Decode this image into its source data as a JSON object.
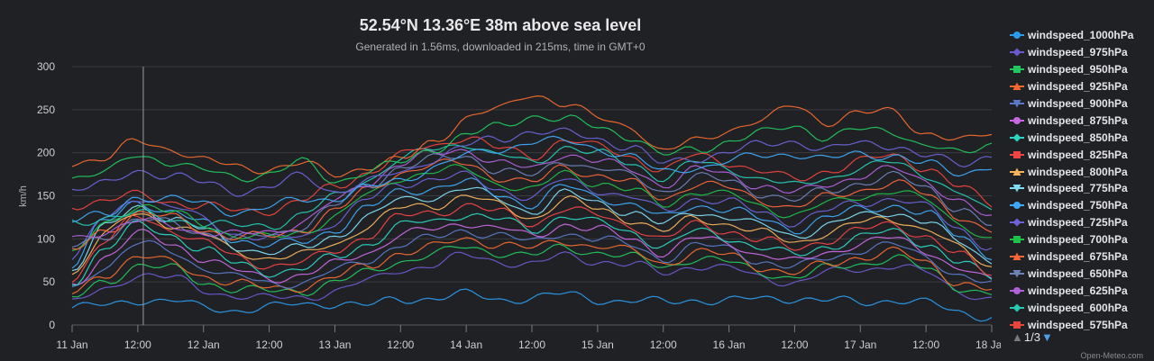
{
  "title": "52.54°N 13.36°E 38m above sea level",
  "subtitle": "Generated in 1.56ms, downloaded in 215ms, time in GMT+0",
  "legend_nav": {
    "up_icon": "▲",
    "page": "1/3",
    "down_icon": "▼"
  },
  "credits": "Open-Meteo.com",
  "chart_data": {
    "type": "line",
    "ylabel": "km/h",
    "xlabel": "",
    "ylim": [
      0,
      300
    ],
    "yticks": [
      0,
      50,
      100,
      150,
      200,
      250,
      300
    ],
    "xlim": [
      0,
      168
    ],
    "xticks": [
      {
        "x": 0,
        "label": "11 Jan"
      },
      {
        "x": 12,
        "label": "12:00"
      },
      {
        "x": 24,
        "label": "12 Jan"
      },
      {
        "x": 36,
        "label": "12:00"
      },
      {
        "x": 48,
        "label": "13 Jan"
      },
      {
        "x": 60,
        "label": "12:00"
      },
      {
        "x": 72,
        "label": "14 Jan"
      },
      {
        "x": 84,
        "label": "12:00"
      },
      {
        "x": 96,
        "label": "15 Jan"
      },
      {
        "x": 108,
        "label": "12:00"
      },
      {
        "x": 120,
        "label": "16 Jan"
      },
      {
        "x": 132,
        "label": "12:00"
      },
      {
        "x": 144,
        "label": "17 Jan"
      },
      {
        "x": 156,
        "label": "12:00"
      },
      {
        "x": 168,
        "label": "18 Jan"
      }
    ],
    "crosshair_x": 13,
    "grid": true,
    "legend_position": "right",
    "x_anchor_hours": [
      0,
      6,
      12,
      18,
      24,
      30,
      36,
      42,
      48,
      54,
      60,
      66,
      72,
      78,
      84,
      90,
      96,
      102,
      108,
      114,
      120,
      126,
      132,
      138,
      144,
      150,
      156,
      162,
      168
    ],
    "series": [
      {
        "name": "windspeed_1000hPa",
        "color": "#2b9bea",
        "marker": "circle",
        "values": [
          20,
          22,
          30,
          28,
          20,
          18,
          20,
          24,
          26,
          22,
          30,
          32,
          35,
          30,
          32,
          35,
          30,
          28,
          26,
          30,
          28,
          30,
          32,
          28,
          26,
          30,
          25,
          15,
          10
        ]
      },
      {
        "name": "windspeed_975hPa",
        "color": "#6a5acd",
        "marker": "diamond",
        "values": [
          25,
          40,
          60,
          55,
          40,
          35,
          30,
          32,
          40,
          50,
          65,
          70,
          80,
          75,
          70,
          80,
          75,
          70,
          60,
          70,
          65,
          55,
          50,
          60,
          65,
          70,
          60,
          40,
          30
        ]
      },
      {
        "name": "windspeed_950hPa",
        "color": "#22c55e",
        "marker": "square",
        "values": [
          30,
          50,
          70,
          65,
          50,
          42,
          38,
          40,
          50,
          60,
          75,
          82,
          90,
          85,
          80,
          90,
          85,
          78,
          68,
          78,
          72,
          62,
          55,
          65,
          72,
          78,
          65,
          45,
          35
        ]
      },
      {
        "name": "windspeed_925hPa",
        "color": "#f06a30",
        "marker": "triangle",
        "values": [
          35,
          60,
          80,
          72,
          58,
          48,
          42,
          45,
          55,
          68,
          85,
          90,
          100,
          95,
          88,
          98,
          92,
          85,
          72,
          85,
          80,
          68,
          60,
          70,
          80,
          85,
          72,
          50,
          40
        ]
      },
      {
        "name": "windspeed_900hPa",
        "color": "#5b79c8",
        "marker": "triangle-down",
        "values": [
          40,
          70,
          95,
          85,
          68,
          55,
          48,
          50,
          62,
          75,
          95,
          100,
          110,
          105,
          95,
          108,
          100,
          92,
          78,
          92,
          88,
          74,
          66,
          78,
          88,
          92,
          80,
          58,
          45
        ]
      },
      {
        "name": "windspeed_875hPa",
        "color": "#c768e0",
        "marker": "circle",
        "values": [
          45,
          80,
          105,
          95,
          78,
          62,
          55,
          58,
          70,
          85,
          105,
          110,
          120,
          112,
          102,
          118,
          110,
          100,
          85,
          100,
          95,
          82,
          72,
          85,
          95,
          100,
          88,
          65,
          50
        ]
      },
      {
        "name": "windspeed_850hPa",
        "color": "#2dd4bf",
        "marker": "diamond",
        "values": [
          50,
          90,
          115,
          105,
          88,
          70,
          62,
          65,
          78,
          95,
          115,
          120,
          130,
          122,
          110,
          128,
          118,
          108,
          92,
          108,
          102,
          90,
          80,
          92,
          102,
          108,
          96,
          72,
          55
        ]
      },
      {
        "name": "windspeed_825hPa",
        "color": "#ef4444",
        "marker": "square",
        "values": [
          55,
          98,
          125,
          112,
          96,
          78,
          70,
          72,
          86,
          105,
          125,
          130,
          140,
          130,
          118,
          136,
          126,
          116,
          100,
          116,
          110,
          98,
          88,
          100,
          110,
          116,
          104,
          80,
          60
        ]
      },
      {
        "name": "windspeed_800hPa",
        "color": "#f5b35c",
        "marker": "triangle",
        "values": [
          60,
          105,
          130,
          118,
          104,
          86,
          78,
          80,
          95,
          115,
          135,
          140,
          150,
          138,
          125,
          145,
          134,
          124,
          108,
          124,
          118,
          106,
          96,
          108,
          118,
          124,
          112,
          88,
          68
        ]
      },
      {
        "name": "windspeed_775hPa",
        "color": "#7fdcf0",
        "marker": "triangle-down",
        "values": [
          65,
          112,
          138,
          124,
          110,
          92,
          84,
          88,
          104,
          125,
          145,
          150,
          158,
          146,
          132,
          152,
          142,
          132,
          116,
          132,
          126,
          114,
          104,
          116,
          126,
          132,
          120,
          96,
          75
        ]
      },
      {
        "name": "windspeed_750hPa",
        "color": "#3fa9f5",
        "marker": "circle",
        "values": [
          70,
          120,
          145,
          130,
          118,
          100,
          92,
          96,
          112,
          135,
          155,
          160,
          165,
          152,
          140,
          160,
          150,
          140,
          124,
          140,
          134,
          122,
          112,
          124,
          134,
          140,
          128,
          104,
          82
        ]
      },
      {
        "name": "windspeed_725hPa",
        "color": "#6b63d6",
        "marker": "diamond",
        "values": [
          75,
          125,
          150,
          136,
          124,
          106,
          98,
          104,
          120,
          145,
          165,
          170,
          172,
          158,
          148,
          168,
          158,
          148,
          132,
          148,
          142,
          130,
          120,
          132,
          142,
          148,
          136,
          112,
          90
        ]
      },
      {
        "name": "windspeed_700hPa",
        "color": "#1fbf4a",
        "marker": "square",
        "values": [
          80,
          118,
          140,
          130,
          118,
          104,
          100,
          108,
          126,
          150,
          172,
          178,
          180,
          165,
          156,
          176,
          166,
          156,
          140,
          156,
          150,
          138,
          128,
          140,
          150,
          156,
          144,
          120,
          98
        ]
      },
      {
        "name": "windspeed_675hPa",
        "color": "#f4663a",
        "marker": "triangle",
        "values": [
          85,
          110,
          130,
          124,
          112,
          102,
          102,
          112,
          132,
          156,
          178,
          185,
          188,
          172,
          164,
          184,
          174,
          164,
          148,
          164,
          158,
          146,
          136,
          148,
          158,
          164,
          152,
          128,
          106
        ]
      },
      {
        "name": "windspeed_650hPa",
        "color": "#6f82b8",
        "marker": "triangle-down",
        "values": [
          90,
          105,
          122,
          118,
          108,
          100,
          104,
          116,
          138,
          162,
          184,
          192,
          196,
          180,
          172,
          192,
          182,
          172,
          156,
          172,
          166,
          154,
          144,
          156,
          166,
          172,
          160,
          136,
          114
        ]
      },
      {
        "name": "windspeed_625hPa",
        "color": "#b060d8",
        "marker": "circle",
        "values": [
          100,
          110,
          120,
          116,
          108,
          104,
          108,
          120,
          142,
          166,
          188,
          198,
          204,
          188,
          180,
          200,
          190,
          180,
          164,
          180,
          174,
          162,
          152,
          164,
          174,
          180,
          168,
          144,
          122
        ]
      },
      {
        "name": "windspeed_600hPa",
        "color": "#27c9b0",
        "marker": "diamond",
        "values": [
          120,
          125,
          128,
          124,
          118,
          114,
          116,
          128,
          148,
          170,
          192,
          204,
          212,
          196,
          188,
          208,
          198,
          188,
          172,
          188,
          182,
          170,
          160,
          172,
          182,
          188,
          176,
          152,
          130
        ]
      },
      {
        "name": "windspeed_575hPa",
        "color": "#e8463d",
        "marker": "square",
        "values": [
          140,
          145,
          150,
          144,
          138,
          132,
          134,
          144,
          160,
          178,
          196,
          208,
          220,
          204,
          196,
          216,
          206,
          196,
          180,
          196,
          190,
          178,
          168,
          180,
          190,
          196,
          184,
          160,
          140
        ]
      },
      {
        "name": "",
        "color": "#ef6a2e",
        "values": [
          190,
          192,
          214,
          206,
          190,
          184,
          182,
          186,
          176,
          184,
          190,
          214,
          240,
          250,
          270,
          256,
          240,
          232,
          200,
          214,
          228,
          236,
          256,
          236,
          244,
          250,
          222,
          212,
          225
        ]
      },
      {
        "name": "",
        "color": "#22c55e",
        "values": [
          172,
          176,
          198,
          190,
          178,
          172,
          176,
          188,
          168,
          178,
          188,
          206,
          220,
          230,
          244,
          238,
          230,
          220,
          196,
          204,
          214,
          222,
          232,
          218,
          226,
          226,
          208,
          198,
          212
        ]
      },
      {
        "name": "",
        "color": "#6b63d6",
        "values": [
          158,
          162,
          180,
          174,
          164,
          156,
          160,
          172,
          156,
          166,
          176,
          194,
          208,
          216,
          226,
          222,
          216,
          208,
          186,
          194,
          202,
          208,
          214,
          204,
          210,
          210,
          196,
          186,
          198
        ]
      },
      {
        "name": "",
        "color": "#3fa9f5",
        "values": [
          122,
          126,
          150,
          146,
          140,
          132,
          136,
          146,
          148,
          158,
          168,
          184,
          196,
          204,
          214,
          212,
          206,
          196,
          176,
          184,
          190,
          196,
          200,
          192,
          198,
          198,
          186,
          176,
          186
        ]
      }
    ]
  }
}
